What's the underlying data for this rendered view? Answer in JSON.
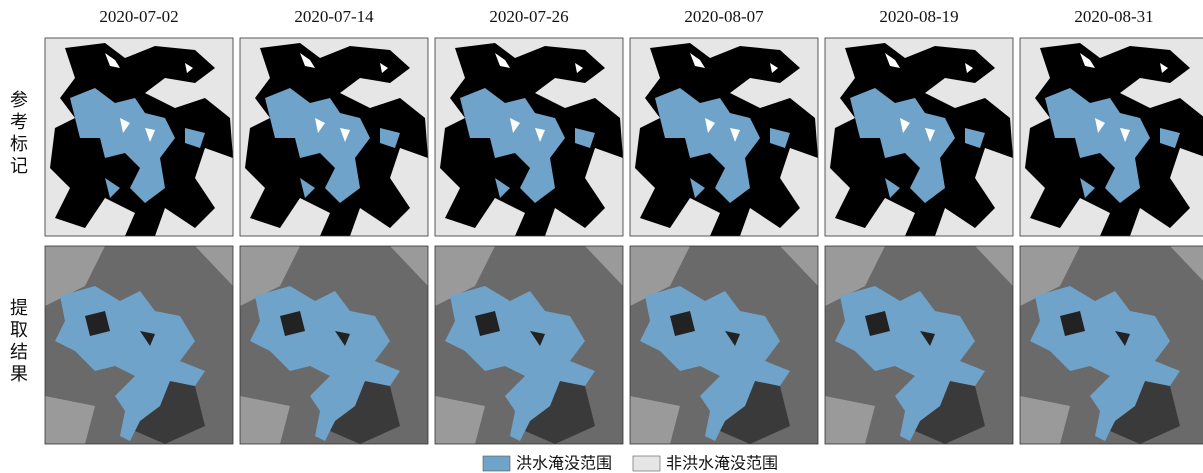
{
  "columns": [
    "2020-07-02",
    "2020-07-14",
    "2020-07-26",
    "2020-08-07",
    "2020-08-19",
    "2020-08-31"
  ],
  "rows": [
    {
      "label": "参考标记"
    },
    {
      "label": "提取结果"
    }
  ],
  "legend": [
    {
      "label": "洪水淹没范围",
      "color": "#6fa3c9"
    },
    {
      "label": "非洪水淹没范围",
      "color": "#e6e6e6"
    }
  ]
}
